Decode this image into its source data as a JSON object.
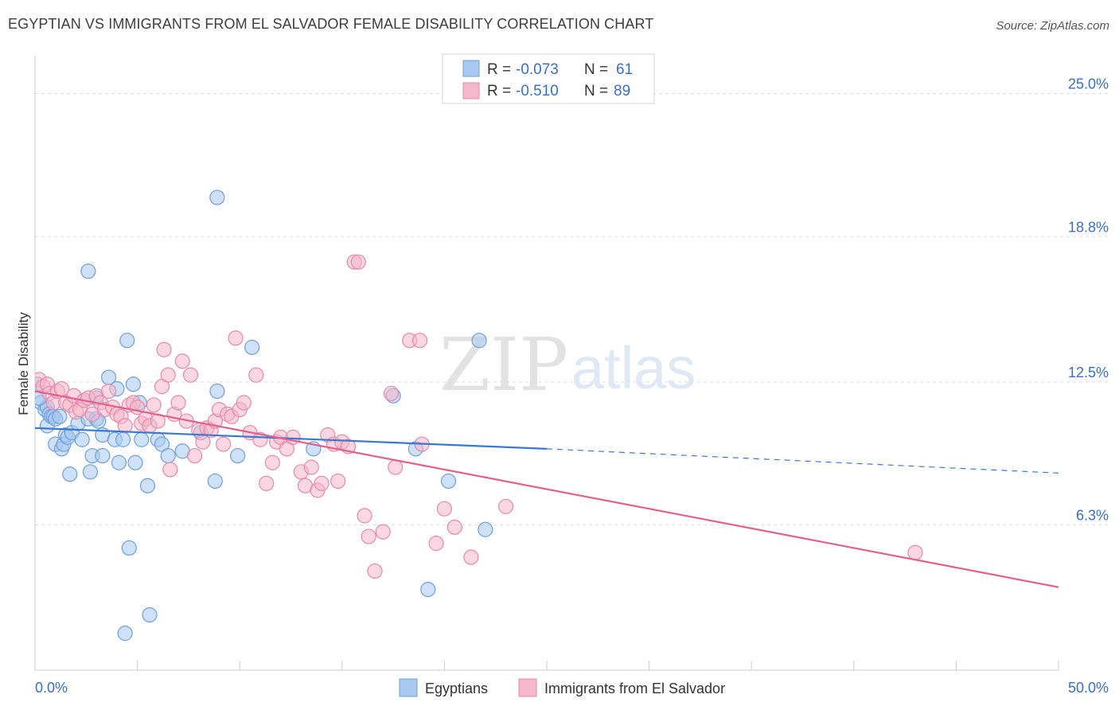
{
  "title": "EGYPTIAN VS IMMIGRANTS FROM EL SALVADOR FEMALE DISABILITY CORRELATION CHART",
  "source": "Source: ZipAtlas.com",
  "watermark": {
    "zip": "ZIP",
    "atlas": "atlas"
  },
  "colors": {
    "blue_fill": "#a8c8ef",
    "blue_stroke": "#6f9fdc",
    "blue_line": "#3a78d0",
    "pink_fill": "#f5b7cb",
    "pink_stroke": "#e58aa8",
    "pink_line": "#e2608d",
    "grid": "#dddddd",
    "tick_text": "#3b6fc4"
  },
  "stats_box": {
    "rows": [
      {
        "r_label": "R =",
        "r_value": "-0.073",
        "n_label": "N =",
        "n_value": "61"
      },
      {
        "r_label": "R =",
        "r_value": "-0.510",
        "n_label": "N =",
        "n_value": "89"
      }
    ]
  },
  "chart_data": {
    "type": "scatter",
    "title": "EGYPTIAN VS IMMIGRANTS FROM EL SALVADOR FEMALE DISABILITY CORRELATION CHART",
    "xlabel": "",
    "ylabel": "Female Disability",
    "xlim": [
      0,
      50
    ],
    "ylim": [
      0,
      26.3
    ],
    "x_tick_labels": [
      "0.0%",
      "50.0%"
    ],
    "y_ticks": [
      6.3,
      12.5,
      18.8,
      25.0
    ],
    "y_tick_labels": [
      "6.3%",
      "12.5%",
      "18.8%",
      "25.0%"
    ],
    "grid": true,
    "legend_position": "bottom-center",
    "series": [
      {
        "name": "Egyptians",
        "color": "blue",
        "r": -0.073,
        "n": 61,
        "trend": {
          "x0": 0,
          "y0": 10.5,
          "x1": 25,
          "y1": 9.6,
          "dashed_to_x": 50,
          "dashed_to_y": 8.55
        },
        "points": [
          [
            0.3,
            11.6
          ],
          [
            0.5,
            11.3
          ],
          [
            0.6,
            11.4
          ],
          [
            0.6,
            10.6
          ],
          [
            0.7,
            11.1
          ],
          [
            0.8,
            11.0
          ],
          [
            0.9,
            11.0
          ],
          [
            1.0,
            10.9
          ],
          [
            1.0,
            9.8
          ],
          [
            1.2,
            11.0
          ],
          [
            1.3,
            9.6
          ],
          [
            1.4,
            9.8
          ],
          [
            1.5,
            10.2
          ],
          [
            1.6,
            10.1
          ],
          [
            1.7,
            8.5
          ],
          [
            1.8,
            10.3
          ],
          [
            2.1,
            10.7
          ],
          [
            2.3,
            10.0
          ],
          [
            2.4,
            11.7
          ],
          [
            2.6,
            10.9
          ],
          [
            2.6,
            17.3
          ],
          [
            2.7,
            8.6
          ],
          [
            2.8,
            9.3
          ],
          [
            3.0,
            11.8
          ],
          [
            3.0,
            10.9
          ],
          [
            3.1,
            10.8
          ],
          [
            3.3,
            9.3
          ],
          [
            3.3,
            10.2
          ],
          [
            3.6,
            12.7
          ],
          [
            3.9,
            10.0
          ],
          [
            4.0,
            12.2
          ],
          [
            4.1,
            9.0
          ],
          [
            4.3,
            10.0
          ],
          [
            4.4,
            1.6
          ],
          [
            4.5,
            14.3
          ],
          [
            4.6,
            5.3
          ],
          [
            4.8,
            12.4
          ],
          [
            4.9,
            9.0
          ],
          [
            5.1,
            11.6
          ],
          [
            5.2,
            10.0
          ],
          [
            5.5,
            8.0
          ],
          [
            5.6,
            2.4
          ],
          [
            6.0,
            10.0
          ],
          [
            6.2,
            9.8
          ],
          [
            6.5,
            9.3
          ],
          [
            7.2,
            9.5
          ],
          [
            8.1,
            10.3
          ],
          [
            8.8,
            8.2
          ],
          [
            8.9,
            12.1
          ],
          [
            8.9,
            20.5
          ],
          [
            9.9,
            9.3
          ],
          [
            10.6,
            14.0
          ],
          [
            13.6,
            9.6
          ],
          [
            17.5,
            11.9
          ],
          [
            18.6,
            9.6
          ],
          [
            19.2,
            3.5
          ],
          [
            20.2,
            8.2
          ],
          [
            21.7,
            14.3
          ],
          [
            22.0,
            6.1
          ],
          [
            0.1,
            12.4
          ],
          [
            0.2,
            11.8
          ]
        ]
      },
      {
        "name": "Immigrants from El Salvador",
        "color": "pink",
        "r": -0.51,
        "n": 89,
        "trend": {
          "x0": 0,
          "y0": 12.1,
          "x1": 50,
          "y1": 3.6
        },
        "points": [
          [
            0.2,
            12.6
          ],
          [
            0.4,
            12.3
          ],
          [
            0.6,
            12.4
          ],
          [
            0.7,
            12.0
          ],
          [
            0.9,
            11.6
          ],
          [
            1.1,
            12.1
          ],
          [
            1.3,
            12.2
          ],
          [
            1.5,
            11.6
          ],
          [
            1.7,
            11.5
          ],
          [
            1.9,
            11.9
          ],
          [
            2.0,
            11.2
          ],
          [
            2.2,
            11.3
          ],
          [
            2.4,
            11.7
          ],
          [
            2.6,
            11.8
          ],
          [
            2.8,
            11.1
          ],
          [
            3.0,
            11.9
          ],
          [
            3.2,
            11.6
          ],
          [
            3.4,
            11.3
          ],
          [
            3.6,
            12.1
          ],
          [
            3.8,
            11.4
          ],
          [
            4.0,
            11.1
          ],
          [
            4.2,
            11.0
          ],
          [
            4.4,
            10.6
          ],
          [
            4.6,
            11.5
          ],
          [
            4.8,
            11.6
          ],
          [
            5.0,
            11.4
          ],
          [
            5.2,
            10.7
          ],
          [
            5.4,
            10.9
          ],
          [
            5.6,
            10.6
          ],
          [
            5.8,
            11.5
          ],
          [
            6.0,
            10.8
          ],
          [
            6.2,
            12.3
          ],
          [
            6.3,
            13.9
          ],
          [
            6.5,
            12.8
          ],
          [
            6.6,
            8.7
          ],
          [
            6.8,
            11.1
          ],
          [
            7.0,
            11.6
          ],
          [
            7.2,
            13.4
          ],
          [
            7.4,
            10.8
          ],
          [
            7.6,
            12.8
          ],
          [
            7.8,
            9.3
          ],
          [
            8.0,
            10.4
          ],
          [
            8.2,
            9.9
          ],
          [
            8.4,
            10.5
          ],
          [
            8.6,
            10.4
          ],
          [
            8.8,
            10.8
          ],
          [
            9.0,
            11.3
          ],
          [
            9.2,
            9.8
          ],
          [
            9.4,
            11.1
          ],
          [
            9.6,
            11.0
          ],
          [
            9.8,
            14.4
          ],
          [
            10.0,
            11.3
          ],
          [
            10.2,
            11.6
          ],
          [
            10.5,
            10.3
          ],
          [
            10.8,
            12.8
          ],
          [
            11.0,
            10.0
          ],
          [
            11.3,
            8.1
          ],
          [
            11.6,
            9.0
          ],
          [
            11.8,
            9.9
          ],
          [
            12.0,
            10.1
          ],
          [
            12.3,
            9.6
          ],
          [
            12.6,
            10.1
          ],
          [
            13.0,
            8.6
          ],
          [
            13.2,
            8.0
          ],
          [
            13.5,
            8.8
          ],
          [
            13.8,
            7.8
          ],
          [
            14.0,
            8.1
          ],
          [
            14.3,
            10.2
          ],
          [
            14.6,
            9.8
          ],
          [
            14.8,
            8.2
          ],
          [
            15.0,
            9.9
          ],
          [
            15.3,
            9.7
          ],
          [
            15.6,
            17.7
          ],
          [
            15.8,
            17.7
          ],
          [
            16.1,
            6.7
          ],
          [
            16.3,
            5.8
          ],
          [
            16.6,
            4.3
          ],
          [
            17.0,
            6.0
          ],
          [
            17.4,
            12.0
          ],
          [
            17.6,
            8.8
          ],
          [
            18.3,
            14.3
          ],
          [
            18.8,
            14.3
          ],
          [
            18.9,
            9.8
          ],
          [
            19.6,
            5.5
          ],
          [
            20.0,
            7.0
          ],
          [
            20.5,
            6.2
          ],
          [
            21.3,
            4.9
          ],
          [
            23.0,
            7.1
          ],
          [
            43.0,
            5.1
          ]
        ]
      }
    ]
  },
  "legend": {
    "items": [
      {
        "label": "Egyptians",
        "color": "blue"
      },
      {
        "label": "Immigrants from El Salvador",
        "color": "pink"
      }
    ]
  }
}
